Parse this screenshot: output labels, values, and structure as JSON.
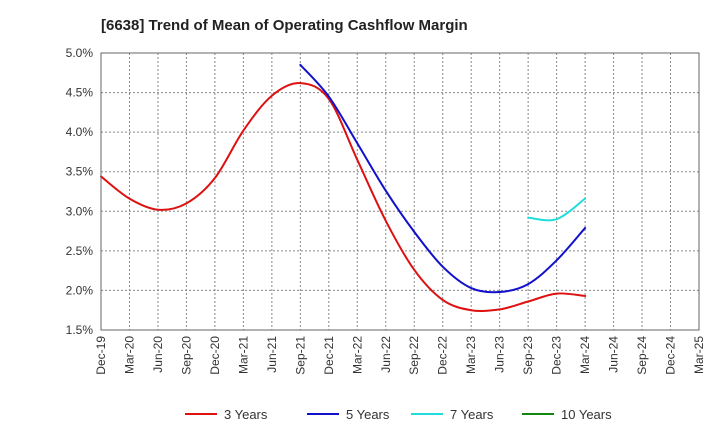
{
  "chart_data": {
    "type": "line",
    "title": "[6638]  Trend of Mean of Operating Cashflow Margin",
    "xlabel": "",
    "ylabel": "",
    "ylim": [
      1.5,
      5.0
    ],
    "y_ticks": [
      1.5,
      2.0,
      2.5,
      3.0,
      3.5,
      4.0,
      4.5,
      5.0
    ],
    "y_tick_labels": [
      "1.5%",
      "2.0%",
      "2.5%",
      "3.0%",
      "3.5%",
      "4.0%",
      "4.5%",
      "5.0%"
    ],
    "categories": [
      "Dec-19",
      "Mar-20",
      "Jun-20",
      "Sep-20",
      "Dec-20",
      "Mar-21",
      "Jun-21",
      "Sep-21",
      "Dec-21",
      "Mar-22",
      "Jun-22",
      "Sep-22",
      "Dec-22",
      "Mar-23",
      "Jun-23",
      "Sep-23",
      "Dec-23",
      "Mar-24",
      "Jun-24",
      "Sep-24",
      "Dec-24",
      "Mar-25"
    ],
    "grid": true,
    "legend_position": "bottom",
    "series": [
      {
        "name": "3 Years",
        "color": "#dd1111",
        "values": [
          3.44,
          3.16,
          3.02,
          3.1,
          3.42,
          4.02,
          4.46,
          4.62,
          4.42,
          3.65,
          2.88,
          2.26,
          1.88,
          1.75,
          1.76,
          1.86,
          1.96,
          1.93,
          null,
          null,
          null,
          null
        ]
      },
      {
        "name": "5 Years",
        "color": "#1111cc",
        "values": [
          null,
          null,
          null,
          null,
          null,
          null,
          null,
          4.85,
          4.45,
          3.86,
          3.26,
          2.74,
          2.3,
          2.03,
          1.98,
          2.08,
          2.38,
          2.79,
          null,
          null,
          null,
          null
        ]
      },
      {
        "name": "7 Years",
        "color": "#22dddd",
        "values": [
          null,
          null,
          null,
          null,
          null,
          null,
          null,
          null,
          null,
          null,
          null,
          null,
          null,
          null,
          null,
          2.92,
          2.9,
          3.16,
          null,
          null,
          null,
          null
        ]
      },
      {
        "name": "10 Years",
        "color": "#118811",
        "values": [
          null,
          null,
          null,
          null,
          null,
          null,
          null,
          null,
          null,
          null,
          null,
          null,
          null,
          null,
          null,
          null,
          null,
          null,
          null,
          null,
          null,
          null
        ]
      }
    ]
  }
}
